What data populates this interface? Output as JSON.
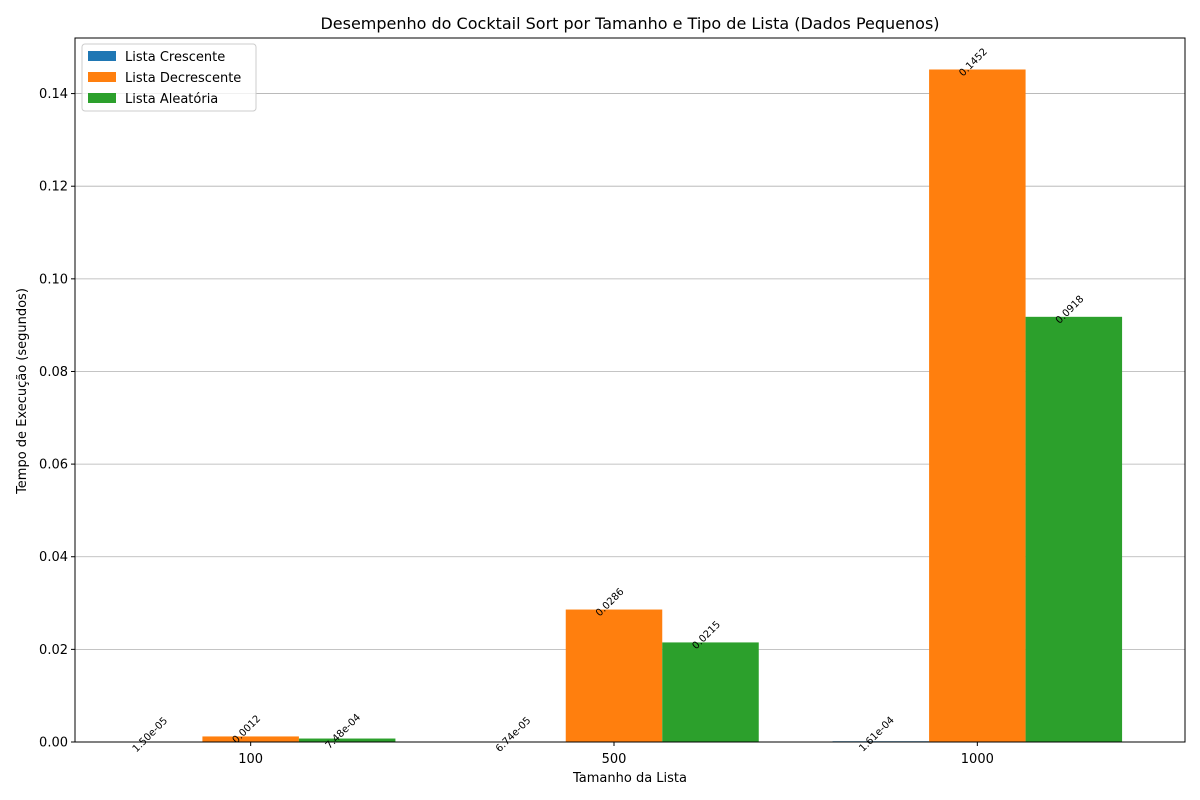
{
  "chart_data": {
    "type": "bar",
    "title": "Desempenho do Cocktail Sort por Tamanho e Tipo de Lista (Dados Pequenos)",
    "xlabel": "Tamanho da Lista",
    "ylabel": "Tempo de Execução (segundos)",
    "categories": [
      "100",
      "500",
      "1000"
    ],
    "ylim": [
      0,
      0.152
    ],
    "yticks": [
      "0.00",
      "0.02",
      "0.04",
      "0.06",
      "0.08",
      "0.10",
      "0.12",
      "0.14"
    ],
    "grid": "horizontal",
    "legend_position": "top-left",
    "series": [
      {
        "name": "Lista Crescente",
        "color": "#1f77b4",
        "values": [
          1.5e-05,
          6.74e-05,
          0.000161
        ],
        "labels": [
          "1.50e-05",
          "6.74e-05",
          "1.61e-04"
        ]
      },
      {
        "name": "Lista Decrescente",
        "color": "#ff7f0e",
        "values": [
          0.0012,
          0.0286,
          0.1452
        ],
        "labels": [
          "0.0012",
          "0.0286",
          "0.1452"
        ]
      },
      {
        "name": "Lista Aleatória",
        "color": "#2ca02c",
        "values": [
          0.000748,
          0.0215,
          0.0918
        ],
        "labels": [
          "7.48e-04",
          "0.0215",
          "0.0918"
        ]
      }
    ]
  }
}
